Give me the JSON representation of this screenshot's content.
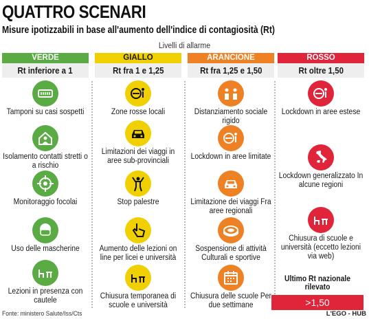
{
  "title": "QUATTRO SCENARI",
  "subtitle": "Misure ipotizzabili in base all'aumento dell'indice di contagiosità (Rt)",
  "levels_caption": "Livelli di allarme",
  "colors": {
    "green": "#5aab44",
    "yellow": "#f0d000",
    "orange": "#ef8125",
    "red": "#e0243a"
  },
  "columns": [
    {
      "name": "VERDE",
      "range": "Rt inferiore a 1",
      "items": [
        {
          "icon": "swab-test-icon",
          "label": "Tamponi su casi sospetti"
        },
        {
          "icon": "house-person-icon",
          "label": "Isolamento contatti stretti o a rischio"
        },
        {
          "icon": "crosshair-icon",
          "label": "Monitoraggio focolai"
        },
        {
          "icon": "face-mask-icon",
          "label": "Uso delle mascherine"
        },
        {
          "icon": "school-desk-icon",
          "label": "Lezioni in presenza con cautele"
        }
      ]
    },
    {
      "name": "GIALLO",
      "range": "Rt fra 1 e 1,25",
      "items": [
        {
          "icon": "no-entry-person-icon",
          "label": "Zone rosse locali"
        },
        {
          "icon": "car-icon",
          "label": "Limitazioni dei viaggi in aree sub-provinciali"
        },
        {
          "icon": "gym-person-icon",
          "label": "Stop palestre"
        },
        {
          "icon": "hand-pointer-icon",
          "label": "Aumento delle lezioni on line per licei e università"
        },
        {
          "icon": "school-desk-icon",
          "label": "Chiusura temporanea di scuole e università"
        }
      ]
    },
    {
      "name": "ARANCIONE",
      "range": "Rt fra 1,25 e 1,50",
      "items": [
        {
          "icon": "distancing-icon",
          "label": "Distanziamento sociale rigido"
        },
        {
          "icon": "no-entry-person-icon",
          "label": "Lockdown in aree limitate"
        },
        {
          "icon": "car-icon",
          "label": "Limitazione dei viaggi Fra aree regionali"
        },
        {
          "icon": "stadium-icon",
          "label": "Sospensione di attività Culturali e sportive"
        },
        {
          "icon": "calendar-icon",
          "label": "Chiusura delle scuole Per due settimane"
        }
      ]
    },
    {
      "name": "ROSSO",
      "range": "Rt oltre 1,50",
      "items": [
        {
          "icon": "no-entry-person-icon",
          "label": "Lockdown in aree estese"
        },
        {
          "icon": "italy-map-icon",
          "label": "Lockdown generalizzato In alcune regioni"
        },
        {
          "icon": "school-desk-icon",
          "label": "Chiusura di scuole e università (eccetto lezioni via web)"
        }
      ]
    }
  ],
  "last_rt": {
    "title": "Ultimo Rt nazionale rilevato",
    "value": ">1,50"
  },
  "source": "Fonte: ministero Salute/Iss/Cts",
  "credit": "L'EGO - HUB"
}
